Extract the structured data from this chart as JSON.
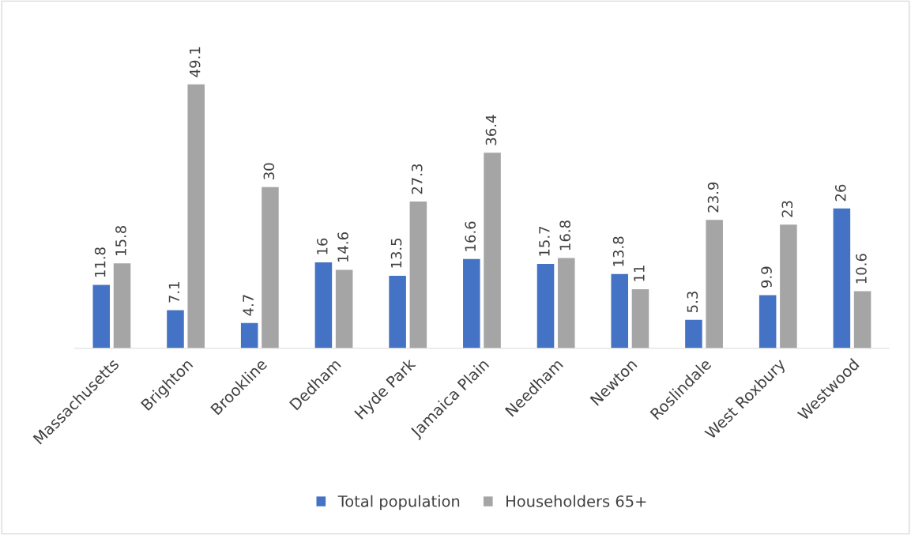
{
  "chart_data": {
    "type": "bar",
    "categories": [
      "Massachusetts",
      "Brighton",
      "Brookline",
      "Dedham",
      "Hyde Park",
      "Jamaica Plain",
      "Needham",
      "Newton",
      "Roslindale",
      "West Roxbury",
      "Westwood"
    ],
    "series": [
      {
        "name": "Total population",
        "color": "#4472c4",
        "values": [
          11.8,
          7.1,
          4.7,
          16,
          13.5,
          16.6,
          15.7,
          13.8,
          5.3,
          9.9,
          26
        ]
      },
      {
        "name": "Householders 65+",
        "color": "#a5a5a5",
        "values": [
          15.8,
          49.1,
          30,
          14.6,
          27.3,
          36.4,
          16.8,
          11,
          23.9,
          23,
          10.6
        ]
      }
    ],
    "data_labels": true,
    "grid": false,
    "legend": "bottom"
  }
}
